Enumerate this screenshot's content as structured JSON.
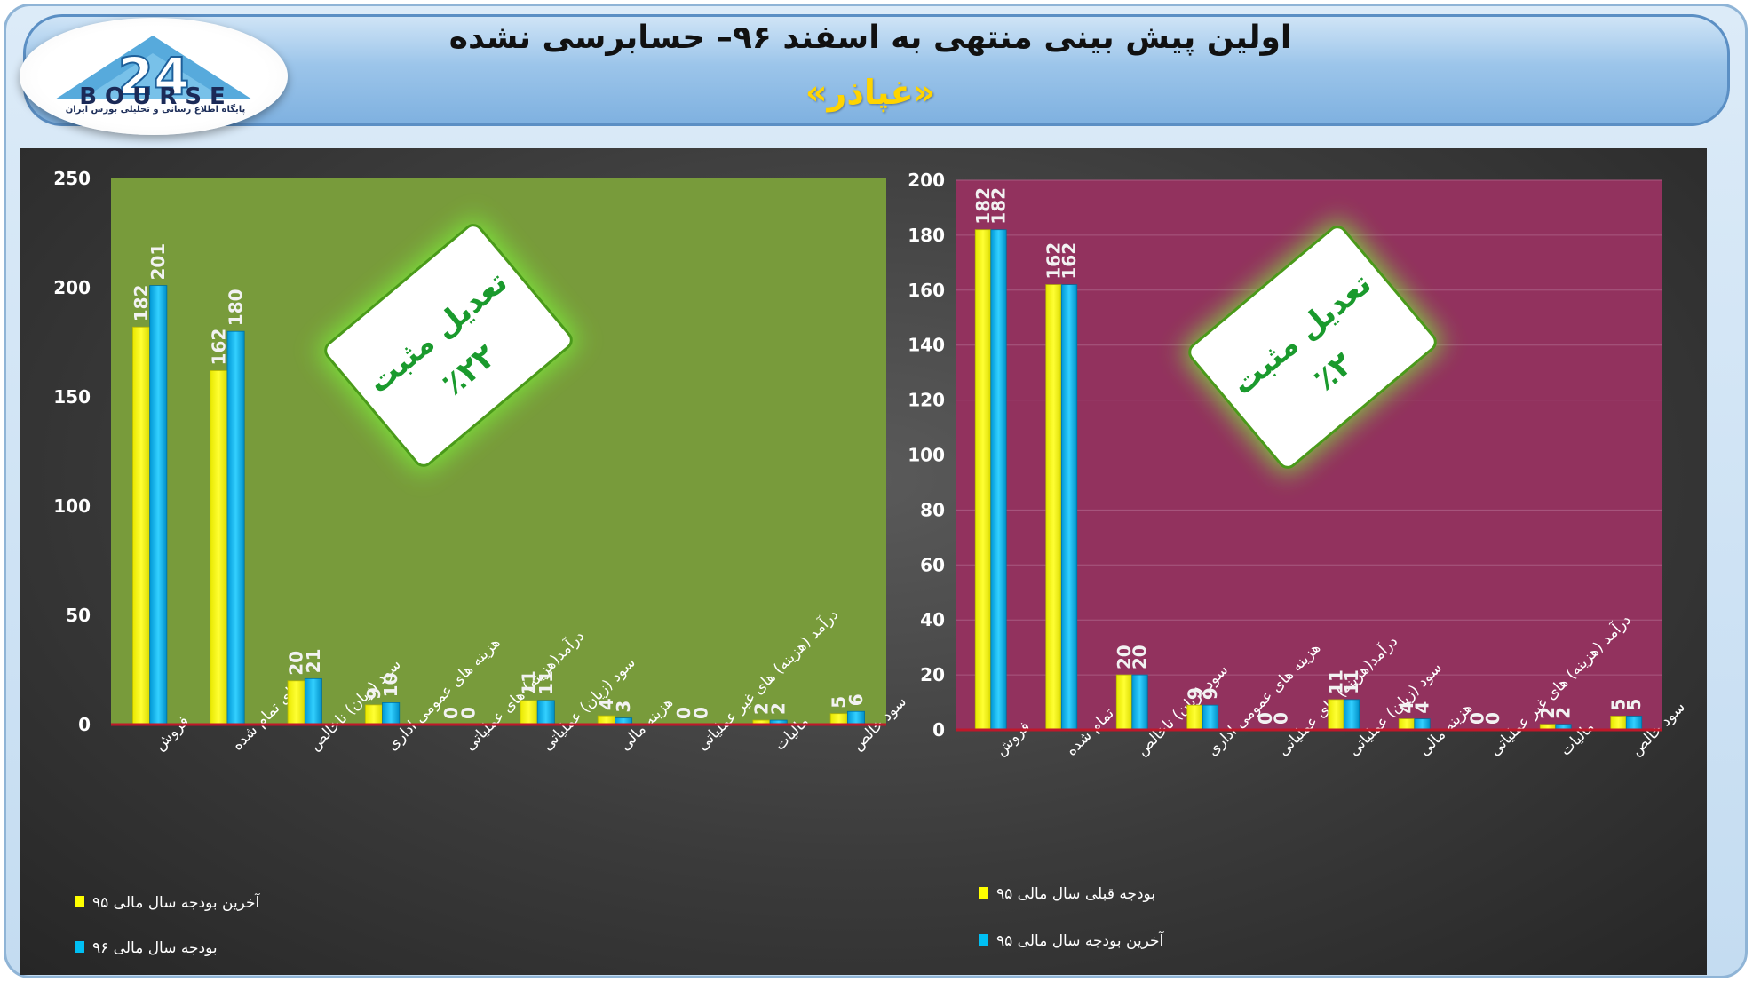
{
  "header": {
    "title": "اولین پیش بینی منتهی به اسفند ۹۶– حسابرسی نشده",
    "subtitle": "«غپاذر»",
    "logo_text": "BOURSE",
    "logo_number": "24",
    "logo_tagline": "پایگاه اطلاع رسانی و تحلیلی بورس ایران"
  },
  "colors": {
    "yellow_bar": "#ffff00",
    "cyan_bar": "#00bff3",
    "left_plot_bg": "#789b3b",
    "right_plot_bg": "#92325e",
    "badge_text": "#1a9a2d",
    "baseline": "#c0182a"
  },
  "badges": {
    "left": {
      "line1": "تعدیل مثبت",
      "line2": "٪۲۲"
    },
    "right": {
      "line1": "تعدیل مثبت",
      "line2": "٪۲"
    }
  },
  "chart_data": [
    {
      "type": "bar",
      "categories": [
        "فروش",
        "بهای تمام شده",
        "سود (زیان) ناخالص",
        "هزینه های عمومی اداری",
        "درآمد(هزینه) های عملیاتی",
        "سود (زیان) عملیاتی",
        "هزینه مالی",
        "درآمد (هزینه) های غیر عملیاتی",
        "مالیات",
        "سود خالص"
      ],
      "series": [
        {
          "name": "آخرین بودجه سال مالی ۹۵",
          "color": "#ffff00",
          "values": [
            182,
            162,
            20,
            9,
            0,
            11,
            4,
            0,
            2,
            5
          ]
        },
        {
          "name": "بودجه سال مالی ۹۶",
          "color": "#00bff3",
          "values": [
            201,
            180,
            21,
            10,
            0,
            11,
            3,
            0,
            2,
            6
          ]
        }
      ],
      "ylim": [
        0,
        250
      ],
      "yticks": [
        0,
        50,
        100,
        150,
        200,
        250
      ],
      "legend": "bottom-left",
      "grid": false
    },
    {
      "type": "bar",
      "categories": [
        "فروش",
        "بهای تمام شده",
        "سود (زیان) ناخالص",
        "هزینه های عمومی اداری",
        "درآمد(هزینه) های عملیاتی",
        "سود (زیان) عملیاتی",
        "هزینه مالی",
        "درآمد (هزینه) های غیر عملیاتی",
        "مالیات",
        "سود خالص"
      ],
      "series": [
        {
          "name": "بودجه قبلی سال مالی ۹۵",
          "color": "#ffff00",
          "values": [
            182,
            162,
            20,
            9,
            0,
            11,
            4,
            0,
            2,
            5
          ]
        },
        {
          "name": "آخرین بودجه سال مالی ۹۵",
          "color": "#00bff3",
          "values": [
            182,
            162,
            20,
            9,
            0,
            11,
            4,
            0,
            2,
            5
          ]
        }
      ],
      "ylim": [
        0,
        200
      ],
      "yticks": [
        0,
        20,
        40,
        60,
        80,
        100,
        120,
        140,
        160,
        180,
        200
      ],
      "legend": "bottom-left",
      "grid": true
    }
  ]
}
